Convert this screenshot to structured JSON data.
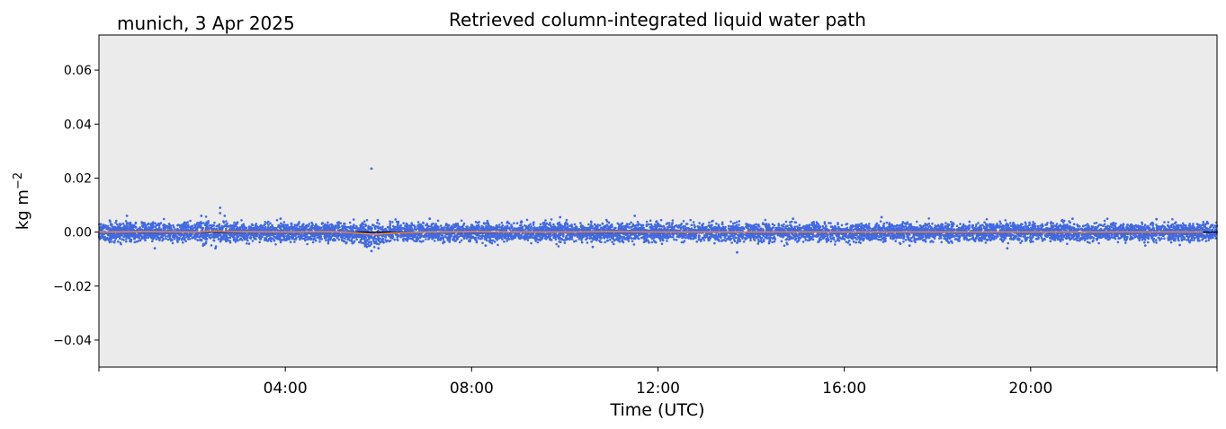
{
  "chart_data": {
    "type": "scatter",
    "site_label": "munich, 3 Apr 2025",
    "title": "Retrieved column-integrated liquid water path",
    "xlabel": "Time (UTC)",
    "ylabel": "kg m",
    "ylabel_exponent": "−2",
    "x_range_hours": [
      0,
      24
    ],
    "ylim": [
      -0.05,
      0.073
    ],
    "x_ticks": [
      {
        "hour": 0,
        "label": ""
      },
      {
        "hour": 4,
        "label": "04:00"
      },
      {
        "hour": 8,
        "label": "08:00"
      },
      {
        "hour": 12,
        "label": "12:00"
      },
      {
        "hour": 16,
        "label": "16:00"
      },
      {
        "hour": 20,
        "label": "20:00"
      },
      {
        "hour": 24,
        "label": ""
      }
    ],
    "y_ticks": [
      {
        "value": 0.06,
        "label": "0.06"
      },
      {
        "value": 0.04,
        "label": "0.04"
      },
      {
        "value": 0.02,
        "label": "0.02"
      },
      {
        "value": 0.0,
        "label": "0.00"
      },
      {
        "value": -0.02,
        "label": "−0.02"
      },
      {
        "value": -0.04,
        "label": "−0.04"
      }
    ],
    "zero_line": 0.0,
    "colors": {
      "background": "#ebebeb",
      "points": "#4169e1",
      "smoothed": "#ff8c3a",
      "zero_line": "#000000"
    },
    "series": [
      {
        "kind": "scatter",
        "typical_spread": 0.003,
        "points": [
          [
            2.6,
            0.009
          ],
          [
            2.6,
            0.007
          ],
          [
            2.2,
            0.006
          ],
          [
            2.7,
            0.006
          ],
          [
            0.6,
            0.006
          ],
          [
            5.85,
            0.0235
          ],
          [
            5.85,
            -0.007
          ],
          [
            2.5,
            -0.006
          ],
          [
            13.7,
            -0.0075
          ],
          [
            19.5,
            -0.006
          ],
          [
            9.9,
            0.0055
          ],
          [
            11.5,
            0.006
          ],
          [
            1.2,
            -0.006
          ],
          [
            3.9,
            0.005
          ],
          [
            7.1,
            0.005
          ],
          [
            14.9,
            0.005
          ],
          [
            16.8,
            0.0055
          ],
          [
            20.9,
            0.005
          ],
          [
            22.7,
            0.0048
          ],
          [
            10.6,
            -0.0055
          ],
          [
            17.4,
            -0.005
          ],
          [
            23.2,
            -0.0048
          ],
          [
            8.3,
            -0.005
          ],
          [
            6.0,
            -0.006
          ]
        ]
      },
      {
        "kind": "smoothed-line",
        "x": [
          0,
          1,
          2,
          2.5,
          3,
          4,
          5,
          5.5,
          5.9,
          6.3,
          7,
          8,
          9,
          10,
          11,
          12,
          13,
          14,
          15,
          16,
          17,
          18,
          19,
          20,
          21,
          22,
          23,
          23.7
        ],
        "y": [
          0,
          0.0001,
          0,
          0.0003,
          0.0001,
          0,
          0.0001,
          -0.0002,
          -0.0009,
          -0.0003,
          0,
          0.0001,
          0,
          0,
          0.0001,
          0,
          0,
          0,
          0,
          0,
          0,
          0,
          0,
          0,
          0,
          0,
          0,
          0
        ]
      }
    ]
  }
}
